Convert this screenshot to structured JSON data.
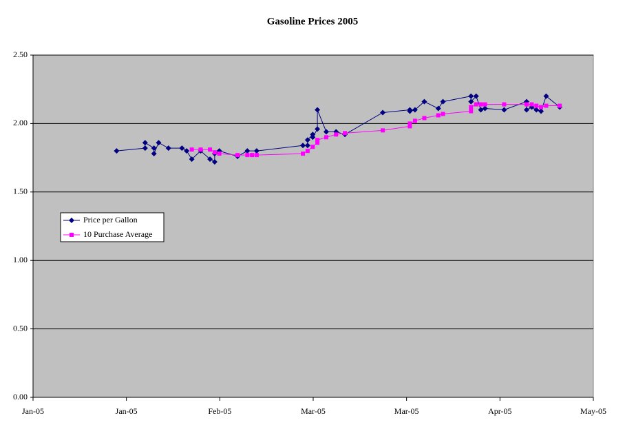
{
  "chart_data": {
    "type": "line",
    "title": "Gasoline Prices 2005",
    "xlim": [
      0,
      120
    ],
    "xticks": [
      {
        "value": 0,
        "label": "Jan-05"
      },
      {
        "value": 20,
        "label": "Jan-05"
      },
      {
        "value": 40,
        "label": "Feb-05"
      },
      {
        "value": 60,
        "label": "Mar-05"
      },
      {
        "value": 80,
        "label": "Mar-05"
      },
      {
        "value": 100,
        "label": "Apr-05"
      },
      {
        "value": 120,
        "label": "May-05"
      }
    ],
    "ylim": [
      0,
      2.5
    ],
    "yticks": [
      {
        "value": 0,
        "label": "0.00"
      },
      {
        "value": 0.5,
        "label": "0.50"
      },
      {
        "value": 1,
        "label": "1.00"
      },
      {
        "value": 1.5,
        "label": "1.50"
      },
      {
        "value": 2,
        "label": "2.00"
      },
      {
        "value": 2.5,
        "label": "2.50"
      }
    ],
    "grid": true,
    "series": [
      {
        "name": "Price per Gallon",
        "color": "#000080",
        "marker": "diamond",
        "x": [
          17.9,
          24.0,
          24.0,
          25.9,
          25.9,
          26.9,
          29.0,
          31.9,
          32.9,
          34.0,
          35.9,
          37.9,
          38.9,
          38.9,
          39.9,
          43.8,
          45.9,
          47.9,
          57.8,
          58.8,
          58.8,
          59.9,
          59.9,
          60.9,
          60.9,
          62.8,
          64.9,
          66.8,
          74.9,
          80.7,
          80.7,
          81.8,
          83.8,
          86.8,
          87.8,
          93.8,
          93.8,
          94.9,
          95.9,
          96.8,
          100.9,
          105.7,
          105.7,
          106.8,
          107.8,
          108.8,
          109.9,
          112.8
        ],
        "values": [
          1.8,
          1.82,
          1.86,
          1.82,
          1.78,
          1.86,
          1.82,
          1.82,
          1.8,
          1.74,
          1.8,
          1.74,
          1.72,
          1.78,
          1.8,
          1.76,
          1.8,
          1.8,
          1.84,
          1.84,
          1.88,
          1.92,
          1.9,
          1.96,
          2.1,
          1.94,
          1.94,
          1.92,
          2.08,
          2.1,
          2.09,
          2.1,
          2.16,
          2.11,
          2.16,
          2.2,
          2.16,
          2.2,
          2.1,
          2.11,
          2.1,
          2.16,
          2.1,
          2.12,
          2.1,
          2.09,
          2.2,
          2.12
        ]
      },
      {
        "name": "10 Purchase Average",
        "color": "#ff00ff",
        "marker": "square",
        "x": [
          34.0,
          35.9,
          37.9,
          38.9,
          39.9,
          43.8,
          45.9,
          46.9,
          47.9,
          57.8,
          58.8,
          59.9,
          60.9,
          60.9,
          62.8,
          64.9,
          66.8,
          74.9,
          80.7,
          80.7,
          81.8,
          83.8,
          86.8,
          87.8,
          93.8,
          93.8,
          94.9,
          95.9,
          96.8,
          100.9,
          105.7,
          106.8,
          107.8,
          108.8,
          109.9,
          112.8
        ],
        "values": [
          1.81,
          1.81,
          1.81,
          1.79,
          1.78,
          1.77,
          1.77,
          1.77,
          1.77,
          1.78,
          1.8,
          1.83,
          1.86,
          1.88,
          1.9,
          1.92,
          1.93,
          1.95,
          1.98,
          2.0,
          2.02,
          2.04,
          2.06,
          2.07,
          2.09,
          2.12,
          2.14,
          2.14,
          2.14,
          2.14,
          2.14,
          2.14,
          2.13,
          2.12,
          2.13,
          2.13
        ]
      }
    ]
  }
}
